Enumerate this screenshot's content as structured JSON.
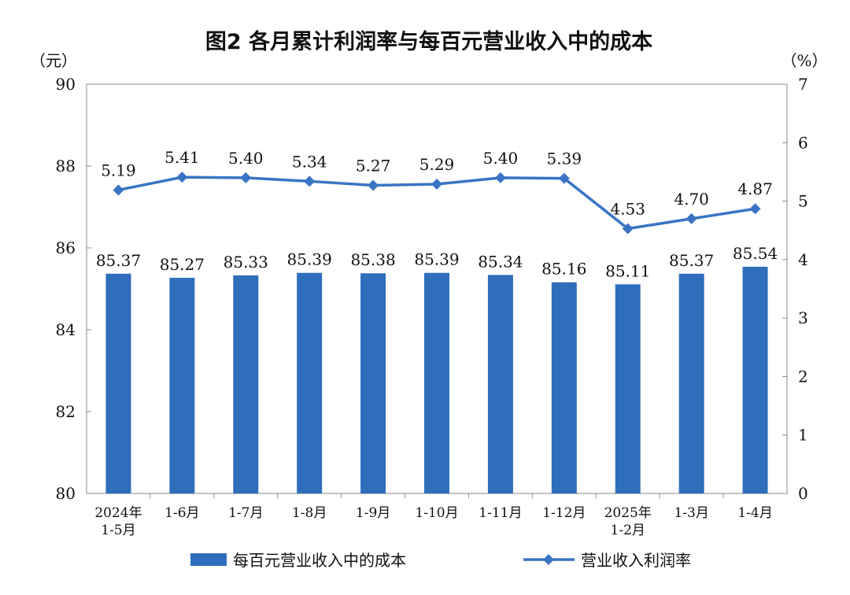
{
  "chart_data": {
    "type": "bar+line",
    "title": "图2  各月累计利润率与每百元营业收入中的成本",
    "left_unit": "（元）",
    "right_unit": "（%）",
    "categories": [
      [
        "2024年",
        "1-5月"
      ],
      [
        "1-6月"
      ],
      [
        "1-7月"
      ],
      [
        "1-8月"
      ],
      [
        "1-9月"
      ],
      [
        "1-10月"
      ],
      [
        "1-11月"
      ],
      [
        "1-12月"
      ],
      [
        "2025年",
        "1-2月"
      ],
      [
        "1-3月"
      ],
      [
        "1-4月"
      ]
    ],
    "left_axis": {
      "range": [
        80,
        90
      ],
      "ticks": [
        80,
        82,
        84,
        86,
        88,
        90
      ]
    },
    "right_axis": {
      "range": [
        0,
        7
      ],
      "ticks": [
        0,
        1,
        2,
        3,
        4,
        5,
        6,
        7
      ]
    },
    "series": [
      {
        "name": "每百元营业收入中的成本",
        "type": "bar",
        "axis": "left",
        "color": "#2F6EBA",
        "values": [
          85.37,
          85.27,
          85.33,
          85.39,
          85.38,
          85.39,
          85.34,
          85.16,
          85.11,
          85.37,
          85.54
        ]
      },
      {
        "name": "营业收入利润率",
        "type": "line",
        "axis": "right",
        "color": "#3A74C4",
        "values": [
          5.19,
          5.41,
          5.4,
          5.34,
          5.27,
          5.29,
          5.4,
          5.39,
          4.53,
          4.7,
          4.87
        ]
      }
    ],
    "legend_position": "bottom"
  }
}
